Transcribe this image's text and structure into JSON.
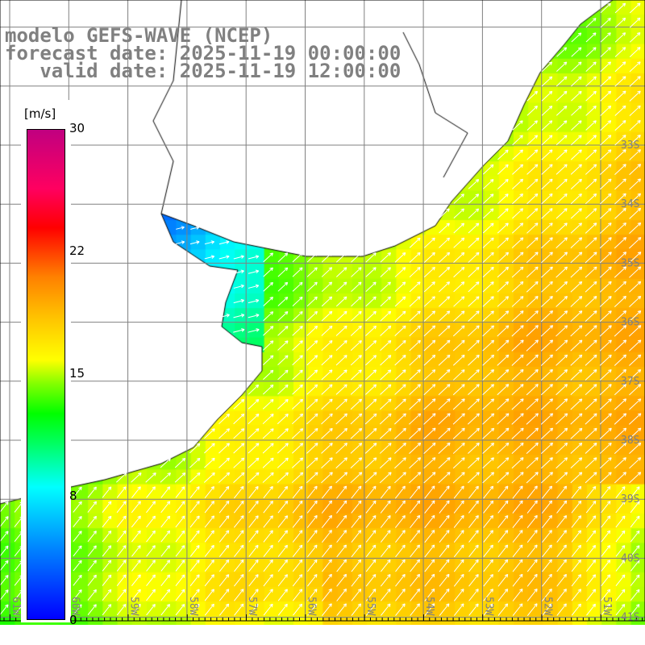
{
  "title": {
    "line1": "modelo GEFS-WAVE (NCEP)",
    "line2": "forecast date: 2025-11-19 00:00:00",
    "line3": "   valid date: 2025-11-19 12:00:00"
  },
  "colorbar": {
    "unit": "[m/s]",
    "ticks": [
      "30",
      "22",
      "15",
      "8",
      "0"
    ],
    "range": [
      0,
      30
    ]
  },
  "axes": {
    "lon_labels": [
      "61W",
      "60W",
      "59W",
      "58W",
      "57W",
      "56W",
      "55W",
      "54W",
      "53W",
      "52W",
      "51W"
    ],
    "lat_labels": [
      "33S",
      "34S",
      "35S",
      "36S",
      "37S",
      "38S",
      "39S",
      "40S",
      "41S"
    ]
  },
  "colors": {
    "land": "#ffffff",
    "grid": "#808080",
    "arrow": "#ffffff",
    "coast": "#000000"
  }
}
